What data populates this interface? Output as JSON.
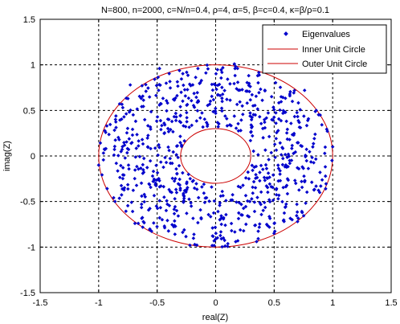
{
  "chart_data": {
    "type": "scatter",
    "title": "N=800, n=2000, c=N/n=0.4, ρ=4, α=5, β=c=0.4, κ=β/ρ=0.1",
    "xlabel": "real(Z)",
    "ylabel": "imag(Z)",
    "xlim": [
      -1.5,
      1.5
    ],
    "ylim": [
      -1.5,
      1.5
    ],
    "xticks": [
      "-1.5",
      "-1",
      "-0.5",
      "0",
      "0.5",
      "1",
      "1.5"
    ],
    "yticks": [
      "1.5",
      "1",
      "0.5",
      "0",
      "-0.5",
      "-1",
      "-1.5"
    ],
    "grid": true,
    "legend_position": "top-right",
    "series": [
      {
        "name": "Eigenvalues",
        "kind": "scatter",
        "color": "#0000cc",
        "count": 800,
        "inner_radius": 0.3,
        "outer_radius": 1.0,
        "values": [
          [
            0.16,
            1.01
          ],
          [
            -0.48,
            0.96
          ],
          [
            0.5,
            0.95
          ],
          [
            -0.73,
            0.78
          ],
          [
            0.76,
            0.72
          ],
          [
            0.86,
            0.5
          ],
          [
            -0.93,
            0.33
          ],
          [
            1.0,
            0.1
          ],
          [
            -1.0,
            -0.1
          ],
          [
            0.94,
            -0.36
          ],
          [
            -0.86,
            -0.5
          ],
          [
            0.7,
            -0.72
          ],
          [
            -0.69,
            -0.74
          ],
          [
            0.35,
            -0.94
          ],
          [
            -0.22,
            -0.98
          ],
          [
            0.05,
            -0.68
          ],
          [
            0.32,
            0.55
          ],
          [
            -0.4,
            0.4
          ],
          [
            0.55,
            -0.2
          ],
          [
            -0.58,
            0.1
          ]
        ]
      },
      {
        "name": "Inner Unit Circle",
        "kind": "circle",
        "radius": 0.3,
        "color": "#cc0000"
      },
      {
        "name": "Outer Unit Circle",
        "kind": "circle",
        "radius": 1.0,
        "color": "#cc0000"
      }
    ]
  }
}
